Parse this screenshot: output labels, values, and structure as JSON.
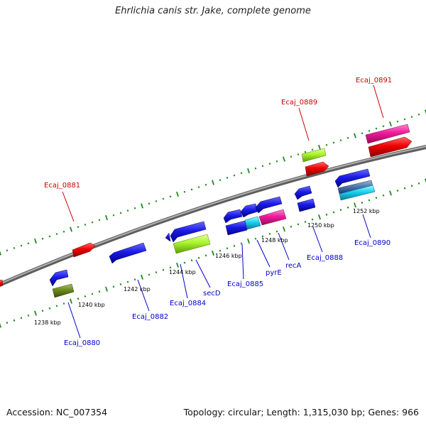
{
  "title": "Ehrlichia canis str. Jake, complete genome",
  "footer": {
    "accession": "Accession: NC_007354",
    "summary": "Topology: circular; Length: 1,315,030 bp; Genes: 966"
  },
  "colors": {
    "backbone": "#8a8a8a",
    "tick": "#1f8a1f",
    "label_forward": "#cc0000",
    "label_reverse": "#0000cc",
    "kbp_text": "#000000"
  },
  "ticks": [
    {
      "label": "1238 kbp"
    },
    {
      "label": "1240 kbp"
    },
    {
      "label": "1242 kbp"
    },
    {
      "label": "1244 kbp"
    },
    {
      "label": "1246 kbp"
    },
    {
      "label": "1248 kbp"
    },
    {
      "label": "1250 kbp"
    },
    {
      "label": "1252 kbp"
    }
  ],
  "gene_labels": {
    "ecaj_0881": "Ecaj_0881",
    "ecaj_0889": "Ecaj_0889",
    "ecaj_0891": "Ecaj_0891",
    "ecaj_0880": "Ecaj_0880",
    "ecaj_0882": "Ecaj_0882",
    "ecaj_0884": "Ecaj_0884",
    "secD": "secD",
    "ecaj_0885": "Ecaj_0885",
    "pyrE": "pyrE",
    "recA": "recA",
    "ecaj_0888": "Ecaj_0888",
    "ecaj_0890": "Ecaj_0890"
  }
}
